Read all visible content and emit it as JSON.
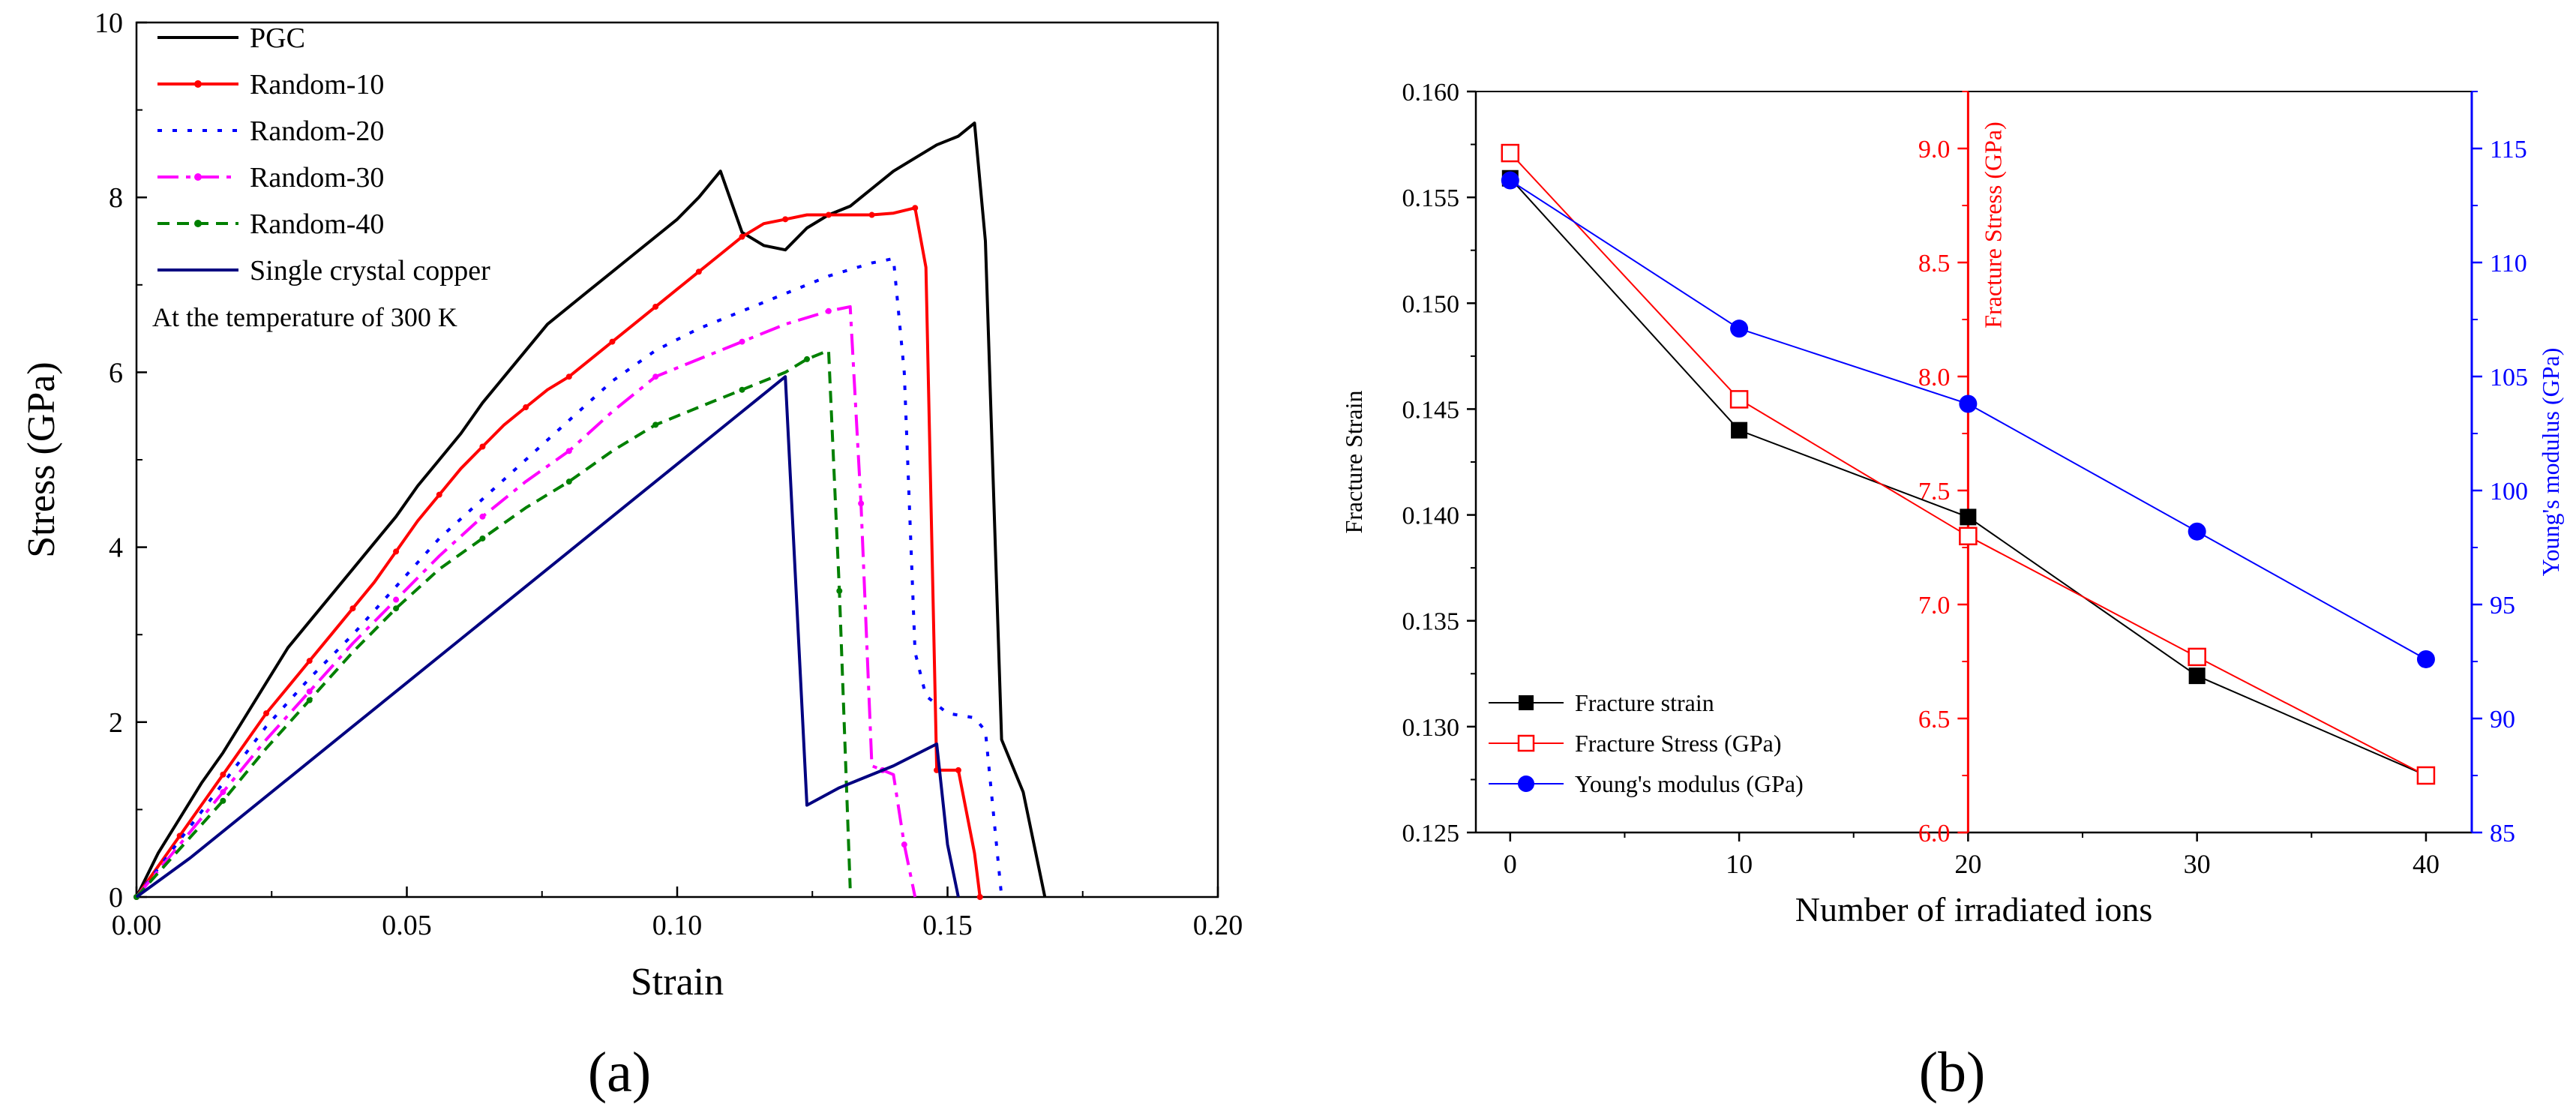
{
  "panels": {
    "a": {
      "label": "(a)",
      "letter": "a"
    },
    "b": {
      "label": "(b)",
      "letter": "b"
    }
  },
  "colors": {
    "pgc": "#000000",
    "random10": "#ff0000",
    "random20": "#0000ff",
    "random30": "#ff00ff",
    "random40": "#008000",
    "single": "#000080",
    "strain_b": "#000000",
    "stress_b": "#ff0000",
    "modulus_b": "#0000ff"
  },
  "chart_data": [
    {
      "id": "a",
      "type": "line",
      "xlabel": "Strain",
      "ylabel": "Stress (GPa)",
      "xlim": [
        0,
        0.2
      ],
      "ylim": [
        0,
        10
      ],
      "xticks": [
        "0.00",
        "0.05",
        "0.10",
        "0.15",
        "0.20"
      ],
      "yticks": [
        "0",
        "2",
        "4",
        "6",
        "8",
        "10"
      ],
      "annotation": "At the temperature of 300 K",
      "legend_position": "top-left",
      "series": [
        {
          "name": "PGC",
          "style": "solid",
          "color_key": "pgc",
          "x": [
            0,
            0.004,
            0.008,
            0.012,
            0.016,
            0.02,
            0.024,
            0.028,
            0.032,
            0.036,
            0.04,
            0.044,
            0.048,
            0.052,
            0.056,
            0.06,
            0.064,
            0.068,
            0.072,
            0.076,
            0.08,
            0.084,
            0.088,
            0.092,
            0.096,
            0.1,
            0.104,
            0.108,
            0.112,
            0.116,
            0.12,
            0.124,
            0.128,
            0.132,
            0.136,
            0.14,
            0.144,
            0.148,
            0.152,
            0.155,
            0.157,
            0.16,
            0.164,
            0.168
          ],
          "y": [
            0,
            0.5,
            0.9,
            1.3,
            1.65,
            2.05,
            2.45,
            2.85,
            3.15,
            3.45,
            3.75,
            4.05,
            4.35,
            4.7,
            5.0,
            5.3,
            5.65,
            5.95,
            6.25,
            6.55,
            6.75,
            6.95,
            7.15,
            7.35,
            7.55,
            7.75,
            8.0,
            8.3,
            7.6,
            7.45,
            7.4,
            7.65,
            7.8,
            7.9,
            8.1,
            8.3,
            8.45,
            8.6,
            8.7,
            8.85,
            7.5,
            1.8,
            1.2,
            0
          ]
        },
        {
          "name": "Random-10",
          "style": "solid-marker",
          "color_key": "random10",
          "x": [
            0,
            0.004,
            0.008,
            0.012,
            0.016,
            0.02,
            0.024,
            0.028,
            0.032,
            0.036,
            0.04,
            0.044,
            0.048,
            0.052,
            0.056,
            0.06,
            0.064,
            0.068,
            0.072,
            0.076,
            0.08,
            0.084,
            0.088,
            0.092,
            0.096,
            0.1,
            0.104,
            0.108,
            0.112,
            0.116,
            0.12,
            0.124,
            0.128,
            0.132,
            0.136,
            0.14,
            0.144,
            0.146,
            0.148,
            0.15,
            0.152,
            0.155,
            0.156
          ],
          "y": [
            0,
            0.35,
            0.7,
            1.05,
            1.4,
            1.75,
            2.1,
            2.4,
            2.7,
            3.0,
            3.3,
            3.6,
            3.95,
            4.3,
            4.6,
            4.9,
            5.15,
            5.4,
            5.6,
            5.8,
            5.95,
            6.15,
            6.35,
            6.55,
            6.75,
            6.95,
            7.15,
            7.35,
            7.55,
            7.7,
            7.75,
            7.8,
            7.8,
            7.8,
            7.8,
            7.82,
            7.88,
            7.2,
            1.45,
            1.45,
            1.45,
            0.5,
            0
          ]
        },
        {
          "name": "Random-20",
          "style": "dot",
          "color_key": "random20",
          "x": [
            0,
            0.008,
            0.016,
            0.024,
            0.032,
            0.04,
            0.048,
            0.056,
            0.064,
            0.072,
            0.08,
            0.088,
            0.096,
            0.104,
            0.112,
            0.12,
            0.128,
            0.136,
            0.14,
            0.142,
            0.144,
            0.146,
            0.15,
            0.155,
            0.157,
            0.16
          ],
          "y": [
            0,
            0.65,
            1.3,
            1.95,
            2.5,
            3.0,
            3.55,
            4.1,
            4.55,
            5.0,
            5.45,
            5.9,
            6.25,
            6.5,
            6.7,
            6.9,
            7.1,
            7.25,
            7.3,
            6.0,
            2.8,
            2.3,
            2.1,
            2.05,
            1.9,
            0
          ]
        },
        {
          "name": "Random-30",
          "style": "dashdot",
          "color_key": "random30",
          "x": [
            0,
            0.008,
            0.016,
            0.024,
            0.032,
            0.04,
            0.048,
            0.056,
            0.064,
            0.072,
            0.08,
            0.088,
            0.096,
            0.104,
            0.112,
            0.12,
            0.128,
            0.132,
            0.134,
            0.136,
            0.138,
            0.14,
            0.142,
            0.144
          ],
          "y": [
            0,
            0.6,
            1.2,
            1.8,
            2.35,
            2.9,
            3.4,
            3.9,
            4.35,
            4.75,
            5.1,
            5.55,
            5.95,
            6.15,
            6.35,
            6.55,
            6.7,
            6.75,
            4.5,
            1.5,
            1.45,
            1.4,
            0.6,
            0
          ]
        },
        {
          "name": "Random-40",
          "style": "dash-marker",
          "color_key": "random40",
          "x": [
            0,
            0.008,
            0.016,
            0.024,
            0.032,
            0.04,
            0.048,
            0.056,
            0.064,
            0.072,
            0.08,
            0.088,
            0.096,
            0.104,
            0.112,
            0.12,
            0.124,
            0.128,
            0.13,
            0.132
          ],
          "y": [
            0,
            0.55,
            1.1,
            1.7,
            2.25,
            2.8,
            3.3,
            3.75,
            4.1,
            4.45,
            4.75,
            5.1,
            5.4,
            5.6,
            5.8,
            6.0,
            6.15,
            6.25,
            3.5,
            0.1
          ]
        },
        {
          "name": "Single crystal copper",
          "style": "solid",
          "color_key": "single",
          "x": [
            0,
            0.01,
            0.02,
            0.03,
            0.04,
            0.05,
            0.06,
            0.07,
            0.08,
            0.09,
            0.1,
            0.11,
            0.12,
            0.124,
            0.13,
            0.14,
            0.148,
            0.15,
            0.152
          ],
          "y": [
            0,
            0.45,
            0.95,
            1.45,
            1.95,
            2.45,
            2.95,
            3.45,
            3.95,
            4.45,
            4.95,
            5.45,
            5.95,
            1.05,
            1.25,
            1.5,
            1.75,
            0.6,
            0
          ]
        }
      ]
    },
    {
      "id": "b",
      "type": "line",
      "xlabel": "Number of irradiated ions",
      "ylabel_left": "Fracture Strain",
      "ylabel_middle": "Fracture Stress (GPa)",
      "ylabel_right": "Young's modulus (GPa)",
      "xlim": [
        -1.5,
        42
      ],
      "xticks": [
        "0",
        "10",
        "20",
        "30",
        "40"
      ],
      "x_tick_values": [
        0,
        10,
        20,
        30,
        40
      ],
      "ylim_left": [
        0.125,
        0.16
      ],
      "yticks_left": [
        "0.125",
        "0.130",
        "0.135",
        "0.140",
        "0.145",
        "0.150",
        "0.155",
        "0.160"
      ],
      "ylim_middle": [
        6.0,
        9.25
      ],
      "yticks_middle": [
        "6.0",
        "6.5",
        "7.0",
        "7.5",
        "8.0",
        "8.5",
        "9.0"
      ],
      "ylim_right": [
        85,
        117.5
      ],
      "yticks_right": [
        "85",
        "90",
        "95",
        "100",
        "105",
        "110",
        "115"
      ],
      "middle_axis_at_x": 20,
      "legend_position": "bottom-left",
      "series": [
        {
          "name": "Fracture strain",
          "axis": "left",
          "marker": "filled-square",
          "color_key": "strain_b",
          "x": [
            0,
            10,
            20,
            30,
            40
          ],
          "y": [
            0.1559,
            0.144,
            0.1399,
            0.1324,
            0.1277
          ]
        },
        {
          "name": "Fracture Stress (GPa)",
          "axis": "middle",
          "marker": "open-square",
          "color_key": "stress_b",
          "x": [
            0,
            10,
            20,
            30,
            40
          ],
          "y": [
            8.98,
            7.9,
            7.3,
            6.77,
            6.25
          ]
        },
        {
          "name": "Young's modulus (GPa)",
          "axis": "right",
          "marker": "filled-circle",
          "color_key": "modulus_b",
          "x": [
            0,
            10,
            20,
            30,
            40
          ],
          "y": [
            113.6,
            107.1,
            103.8,
            98.2,
            92.6
          ]
        }
      ]
    }
  ]
}
